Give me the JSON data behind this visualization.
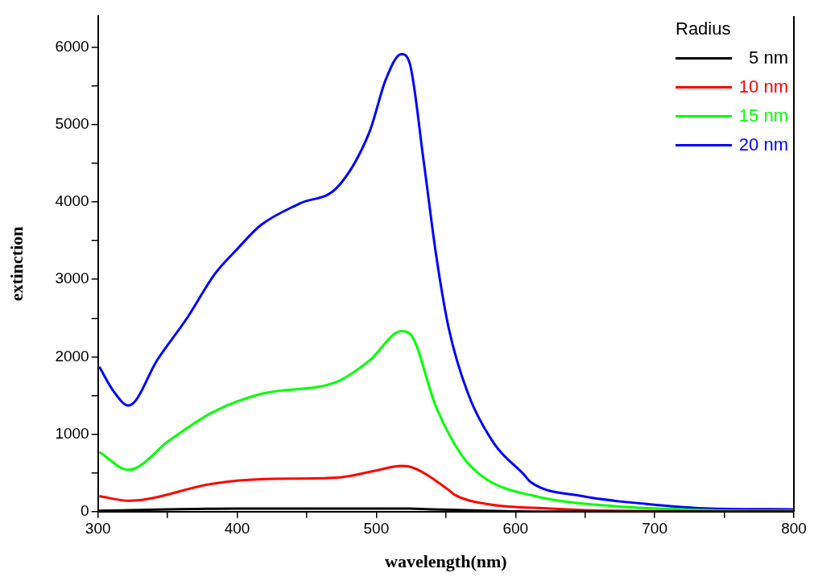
{
  "chart_data": {
    "type": "line",
    "xlabel": "wavelength(nm)",
    "ylabel": "extinction",
    "legend_title": "Radius",
    "legend": "top right",
    "grid": false,
    "marker": "none",
    "line_style": "solid",
    "xlim": [
      300,
      800
    ],
    "ylim": [
      0,
      6400
    ],
    "xticks": [
      300,
      {
        "value": 350,
        "label": null
      },
      400,
      {
        "value": 450,
        "label": null
      },
      500,
      {
        "value": 550,
        "label": null
      },
      600,
      {
        "value": 650,
        "label": null
      },
      700,
      {
        "value": 750,
        "label": null
      },
      800
    ],
    "yticks": [
      0,
      {
        "value": 500,
        "label": null
      },
      1000,
      {
        "value": 1500,
        "label": null
      },
      2000,
      {
        "value": 2500,
        "label": null
      },
      3000,
      {
        "value": 3500,
        "label": null
      },
      4000,
      {
        "value": 4500,
        "label": null
      },
      5000,
      {
        "value": 5500,
        "label": null
      },
      6000
    ],
    "series": [
      {
        "name": "5 nm",
        "color": "#000000",
        "x": [
          300,
          350,
          400,
          450,
          520,
          540,
          580,
          620,
          800
        ],
        "values": [
          10,
          30,
          40,
          40,
          40,
          30,
          10,
          0,
          0
        ]
      },
      {
        "name": "10 nm",
        "color": "#ff0000",
        "x": [
          301,
          322,
          382,
          417,
          472,
          497,
          518,
          524,
          552,
          556,
          579,
          625,
          671,
          800
        ],
        "values": [
          200,
          140,
          360,
          420,
          440,
          520,
          590,
          580,
          280,
          220,
          100,
          40,
          10,
          0
        ]
      },
      {
        "name": "15 nm",
        "color": "#00ff00",
        "x": [
          301,
          322,
          352,
          382,
          417,
          472,
          495,
          518,
          524,
          543,
          562,
          579,
          614,
          671,
          740,
          800
        ],
        "values": [
          770,
          540,
          930,
          1280,
          1520,
          1680,
          1950,
          2330,
          2300,
          1350,
          710,
          420,
          200,
          70,
          20,
          10
        ]
      },
      {
        "name": "20 nm",
        "color": "#0000ff",
        "x": [
          301,
          311,
          322,
          343,
          364,
          384,
          400,
          417,
          445,
          472,
          495,
          507,
          518,
          524,
          534,
          543,
          552,
          566,
          585,
          606,
          611,
          648,
          694,
          740,
          800
        ],
        "values": [
          1870,
          1560,
          1370,
          1970,
          2500,
          3070,
          3390,
          3700,
          3980,
          4190,
          4900,
          5590,
          5910,
          5790,
          4530,
          3310,
          2370,
          1520,
          870,
          480,
          380,
          200,
          100,
          40,
          30
        ]
      }
    ]
  }
}
